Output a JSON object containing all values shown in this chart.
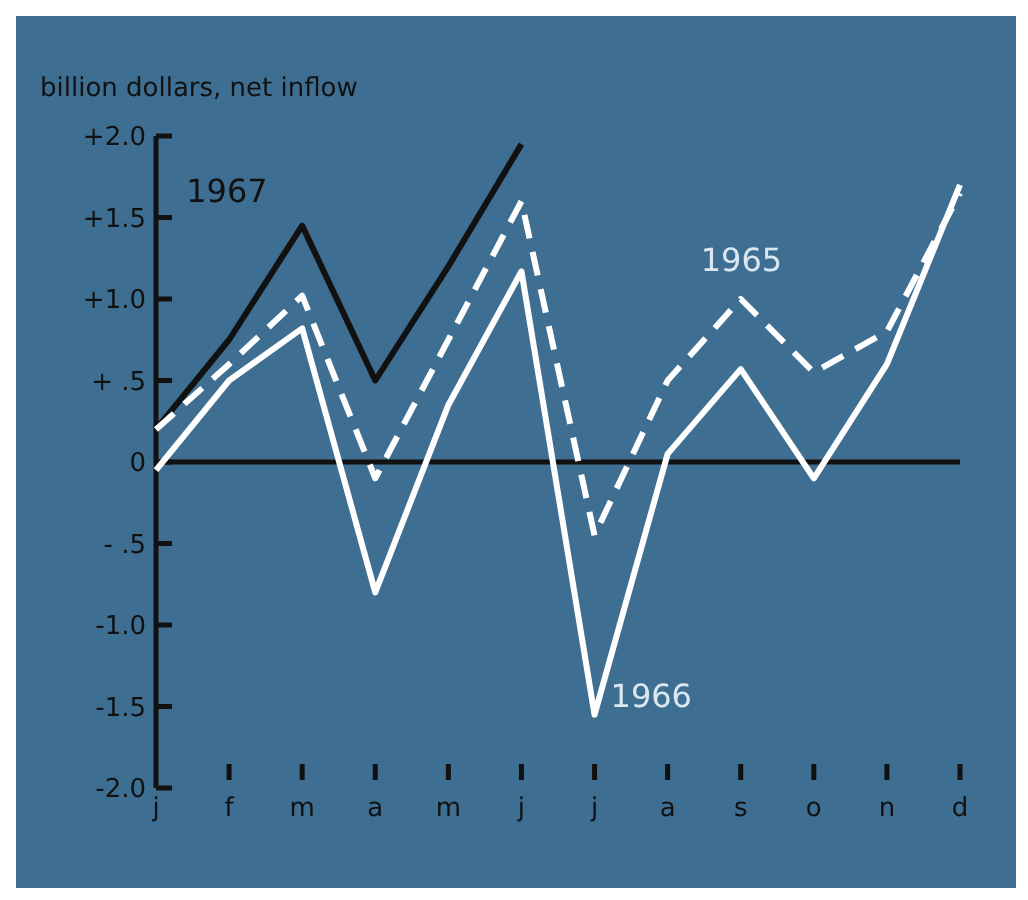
{
  "chart_data": {
    "type": "line",
    "ylabel": "billion dollars, net inflow",
    "categories": [
      "j",
      "f",
      "m",
      "a",
      "m",
      "j",
      "j",
      "a",
      "s",
      "o",
      "n",
      "d"
    ],
    "ylim": [
      -2.0,
      2.0
    ],
    "yticks": [
      {
        "value": 2.0,
        "label": "+2.0"
      },
      {
        "value": 1.5,
        "label": "+1.5"
      },
      {
        "value": 1.0,
        "label": "+1.0"
      },
      {
        "value": 0.5,
        "label": "+ .5"
      },
      0,
      {
        "value": -0.5,
        "label": "- .5"
      },
      {
        "value": -1.0,
        "label": "-1.0"
      },
      {
        "value": -1.5,
        "label": "-1.5"
      },
      {
        "value": -2.0,
        "label": "-2.0"
      }
    ],
    "ref_lines": [
      {
        "axis": "y",
        "value": 0,
        "color": "#111111"
      }
    ],
    "grid": false,
    "marker": "none",
    "series": [
      {
        "name": "1967",
        "color": "#111111",
        "line_style": "solid",
        "values": [
          0.2,
          0.75,
          1.45,
          0.5,
          1.2,
          1.95,
          null,
          null,
          null,
          null,
          null,
          null
        ]
      },
      {
        "name": "1965",
        "color": "#ffffff",
        "line_style": "dashed",
        "values": [
          0.2,
          0.6,
          1.02,
          -0.1,
          0.75,
          1.6,
          -0.45,
          0.5,
          1.0,
          0.55,
          0.8,
          1.65
        ]
      },
      {
        "name": "1966",
        "color": "#ffffff",
        "line_style": "solid",
        "values": [
          -0.05,
          0.5,
          0.82,
          -0.8,
          0.35,
          1.17,
          -1.55,
          0.05,
          0.57,
          -0.1,
          0.6,
          1.7
        ]
      }
    ]
  }
}
